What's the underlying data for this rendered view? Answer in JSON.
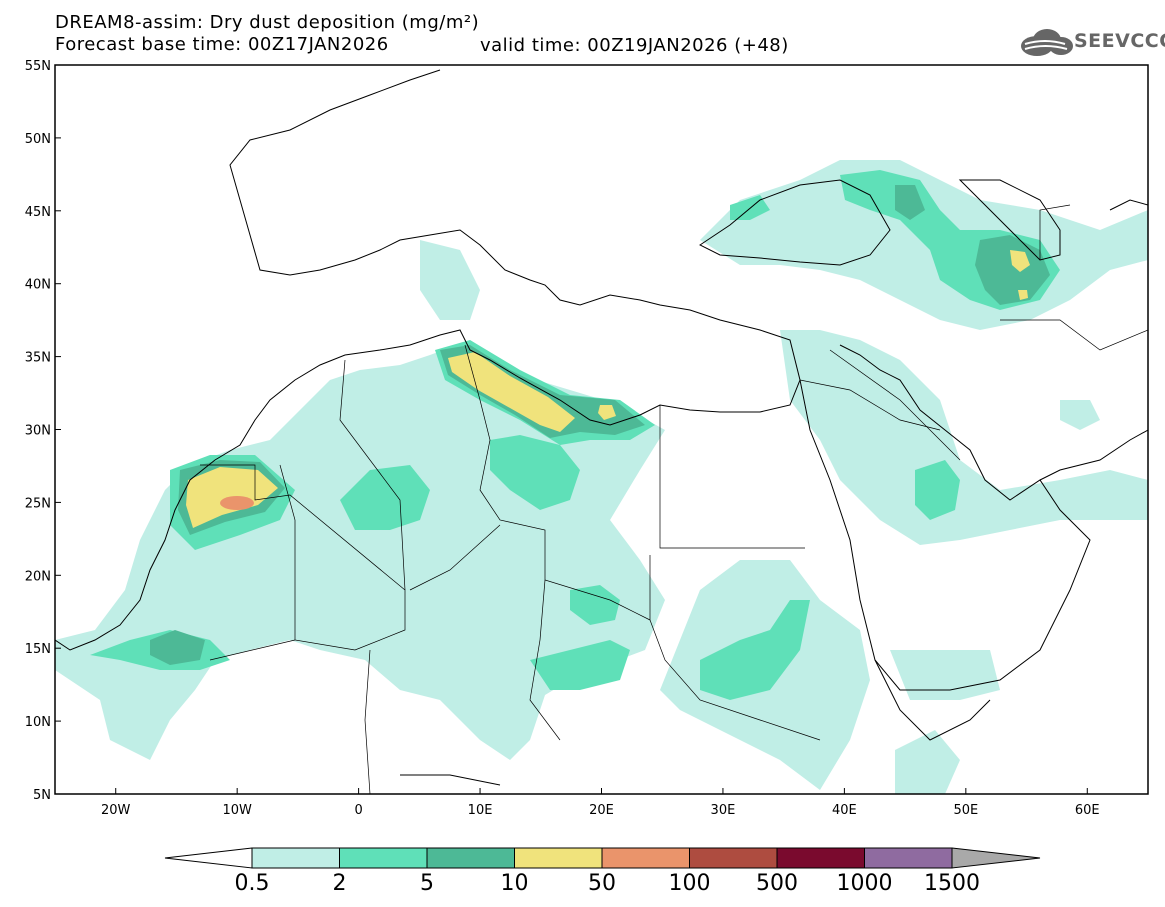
{
  "header": {
    "line1": "DREAM8-assim: Dry dust deposition (mg/m²)",
    "line2": "Forecast base time: 00Z17JAN2026",
    "valid": "valid time: 00Z19JAN2026 (+48)",
    "logo": "SEEVCCC"
  },
  "map": {
    "lon_range": [
      -25,
      65
    ],
    "lat_range": [
      5,
      55
    ],
    "lon_ticks": [
      {
        "label": "20W",
        "value": -20
      },
      {
        "label": "10W",
        "value": -10
      },
      {
        "label": "0",
        "value": 0
      },
      {
        "label": "10E",
        "value": 10
      },
      {
        "label": "20E",
        "value": 20
      },
      {
        "label": "30E",
        "value": 30
      },
      {
        "label": "40E",
        "value": 40
      },
      {
        "label": "50E",
        "value": 50
      },
      {
        "label": "60E",
        "value": 60
      }
    ],
    "lat_ticks": [
      {
        "label": "5N",
        "value": 5
      },
      {
        "label": "10N",
        "value": 10
      },
      {
        "label": "15N",
        "value": 15
      },
      {
        "label": "20N",
        "value": 20
      },
      {
        "label": "25N",
        "value": 25
      },
      {
        "label": "30N",
        "value": 30
      },
      {
        "label": "35N",
        "value": 35
      },
      {
        "label": "40N",
        "value": 40
      },
      {
        "label": "45N",
        "value": 45
      },
      {
        "label": "50N",
        "value": 50
      },
      {
        "label": "55N",
        "value": 55
      }
    ]
  },
  "colorbar": {
    "labels": [
      "0.5",
      "2",
      "5",
      "10",
      "50",
      "100",
      "500",
      "1000",
      "1500"
    ],
    "colors": [
      "#c0eee6",
      "#5fe0b8",
      "#4db996",
      "#f0e37c",
      "#ea946b",
      "#ae4c40",
      "#7a0a2e",
      "#8f6ba0"
    ],
    "under_color": "#ffffff",
    "over_color": "#a9a9a9"
  }
}
